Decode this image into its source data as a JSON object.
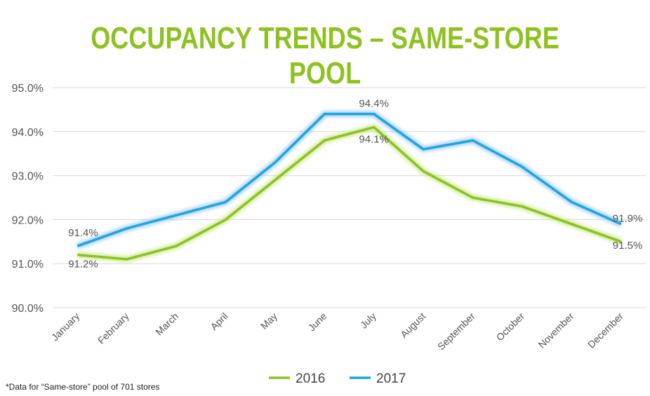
{
  "chart_data": {
    "type": "line",
    "title": "OCCUPANCY TRENDS – SAME-STORE POOL",
    "categories": [
      "January",
      "February",
      "March",
      "April",
      "May",
      "June",
      "July",
      "August",
      "September",
      "October",
      "November",
      "December"
    ],
    "ylim": [
      90.0,
      95.0
    ],
    "yticks": [
      "90.0%",
      "91.0%",
      "92.0%",
      "93.0%",
      "94.0%",
      "95.0%"
    ],
    "grid": true,
    "legend_placement": "bottom",
    "series": [
      {
        "name": "2016",
        "color": "#8dc21f",
        "values": [
          91.2,
          91.1,
          91.4,
          92.0,
          92.9,
          93.8,
          94.1,
          93.1,
          92.5,
          92.3,
          91.9,
          91.5
        ],
        "labels": {
          "0": "91.2%",
          "6": "94.1%",
          "11": "91.5%"
        }
      },
      {
        "name": "2017",
        "color": "#1aa7e0",
        "values": [
          91.4,
          91.8,
          92.1,
          92.4,
          93.3,
          94.4,
          94.4,
          93.6,
          93.8,
          93.2,
          92.4,
          91.9
        ],
        "labels": {
          "0": "91.4%",
          "6": "94.4%",
          "11": "91.9%"
        }
      }
    ],
    "footnote": "*Data for “Same-store” pool of 701 stores"
  }
}
